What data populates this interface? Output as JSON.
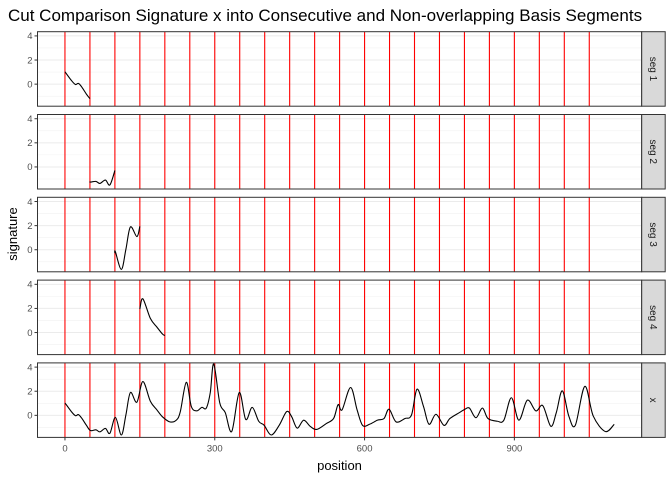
{
  "chart_data": {
    "type": "line",
    "title": "Cut Comparison Signature x into Consecutive and Non-overlapping Basis Segments",
    "xlabel": "position",
    "ylabel": "signature",
    "xlim": [
      -55,
      1155
    ],
    "ylim": [
      -1.83,
      4.35
    ],
    "x_ticks": [
      0,
      300,
      600,
      900
    ],
    "x_tick_labels": [
      "0",
      "300",
      "600",
      "900"
    ],
    "y_ticks": [
      0,
      2,
      4
    ],
    "y_tick_labels": [
      "0",
      "2",
      "4"
    ],
    "grid": true,
    "facet_strip_position": "right",
    "cut_lines": {
      "color": "#ff0000",
      "positions": [
        0,
        50,
        100,
        150,
        200,
        250,
        300,
        350,
        400,
        450,
        500,
        550,
        600,
        650,
        700,
        750,
        800,
        850,
        900,
        950,
        1000,
        1050
      ]
    },
    "line_color": "#000000",
    "panels": [
      {
        "label": "seg 1",
        "range": [
          0,
          50
        ]
      },
      {
        "label": "seg 2",
        "range": [
          50,
          100
        ]
      },
      {
        "label": "seg 3",
        "range": [
          100,
          150
        ]
      },
      {
        "label": "seg 4",
        "range": [
          150,
          200
        ]
      },
      {
        "label": "x",
        "range": null
      }
    ],
    "series": [
      {
        "name": "x",
        "x": [
          0,
          13,
          21,
          27,
          34,
          43,
          51,
          62,
          70,
          81,
          90,
          101,
          113,
          122,
          131,
          144,
          156,
          171,
          184,
          195,
          210,
          223,
          231,
          243,
          253,
          264,
          274,
          283,
          291,
          298,
          310,
          321,
          334,
          349,
          362,
          375,
          388,
          399,
          413,
          429,
          444,
          454,
          465,
          478,
          491,
          504,
          523,
          538,
          547,
          555,
          572,
          585,
          596,
          610,
          626,
          639,
          649,
          663,
          681,
          694,
          705,
          718,
          729,
          743,
          759,
          771,
          790,
          801,
          810,
          823,
          836,
          847,
          866,
          879,
          894,
          909,
          926,
          943,
          957,
          973,
          984,
          996,
          1009,
          1022,
          1041,
          1058,
          1082,
          1100
        ],
        "y": [
          1.03,
          0.3,
          -0.03,
          0.06,
          -0.26,
          -0.83,
          -1.26,
          -1.2,
          -1.37,
          -1.09,
          -1.49,
          -0.17,
          -1.63,
          0.03,
          1.89,
          1.09,
          2.8,
          1.17,
          0.46,
          -0.11,
          -0.54,
          -0.4,
          0.31,
          2.74,
          0.74,
          0.37,
          0.66,
          0.6,
          1.89,
          4.26,
          1.03,
          0.23,
          -1.34,
          1.89,
          -0.34,
          0.66,
          -0.49,
          -0.83,
          -1.63,
          -0.83,
          0.31,
          -0.11,
          -1.06,
          -0.4,
          -0.91,
          -1.17,
          -0.69,
          -0.26,
          0.89,
          0.46,
          2.31,
          0.46,
          -0.83,
          -0.74,
          -0.4,
          -0.26,
          0.51,
          -0.54,
          -0.26,
          0.03,
          2.17,
          0.74,
          -0.74,
          0.09,
          -0.83,
          -0.26,
          0.23,
          0.51,
          0.6,
          -0.2,
          0.6,
          -0.26,
          -0.49,
          -0.4,
          1.46,
          -0.4,
          1.26,
          0.37,
          0.8,
          -0.91,
          0.23,
          2.03,
          -0.06,
          -0.83,
          2.4,
          -0.06,
          -1.34,
          -0.74
        ]
      }
    ]
  }
}
